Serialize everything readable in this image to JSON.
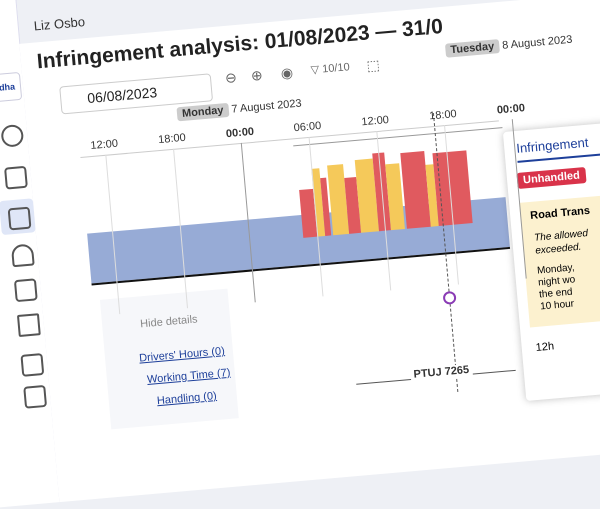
{
  "user": "Liz Osbo",
  "title": "Infringement analysis:",
  "date_range": "01/08/2023  —  31/0",
  "filter_count": "10/10",
  "date_input": "06/08/2023",
  "days": [
    {
      "name": "Monday",
      "date": "7 August 2023"
    },
    {
      "name": "Tuesday",
      "date": "8 August 2023"
    }
  ],
  "times": [
    "12:00",
    "18:00",
    "00:00",
    "06:00",
    "12:00",
    "18:00",
    "00:00"
  ],
  "details": {
    "toggle": "Hide details",
    "links": [
      "Drivers' Hours (0)",
      "Working Time (7)",
      "Handling (0)"
    ]
  },
  "vehicle": "PTUJ 7265",
  "panel": {
    "tab": "Infringement",
    "status": "Unhandled",
    "heading": "Road Trans",
    "lines": [
      "The allowed",
      "exceeded."
    ],
    "body": [
      "Monday,",
      "night wo",
      "the end",
      "10 hour"
    ],
    "footer": "12h"
  }
}
